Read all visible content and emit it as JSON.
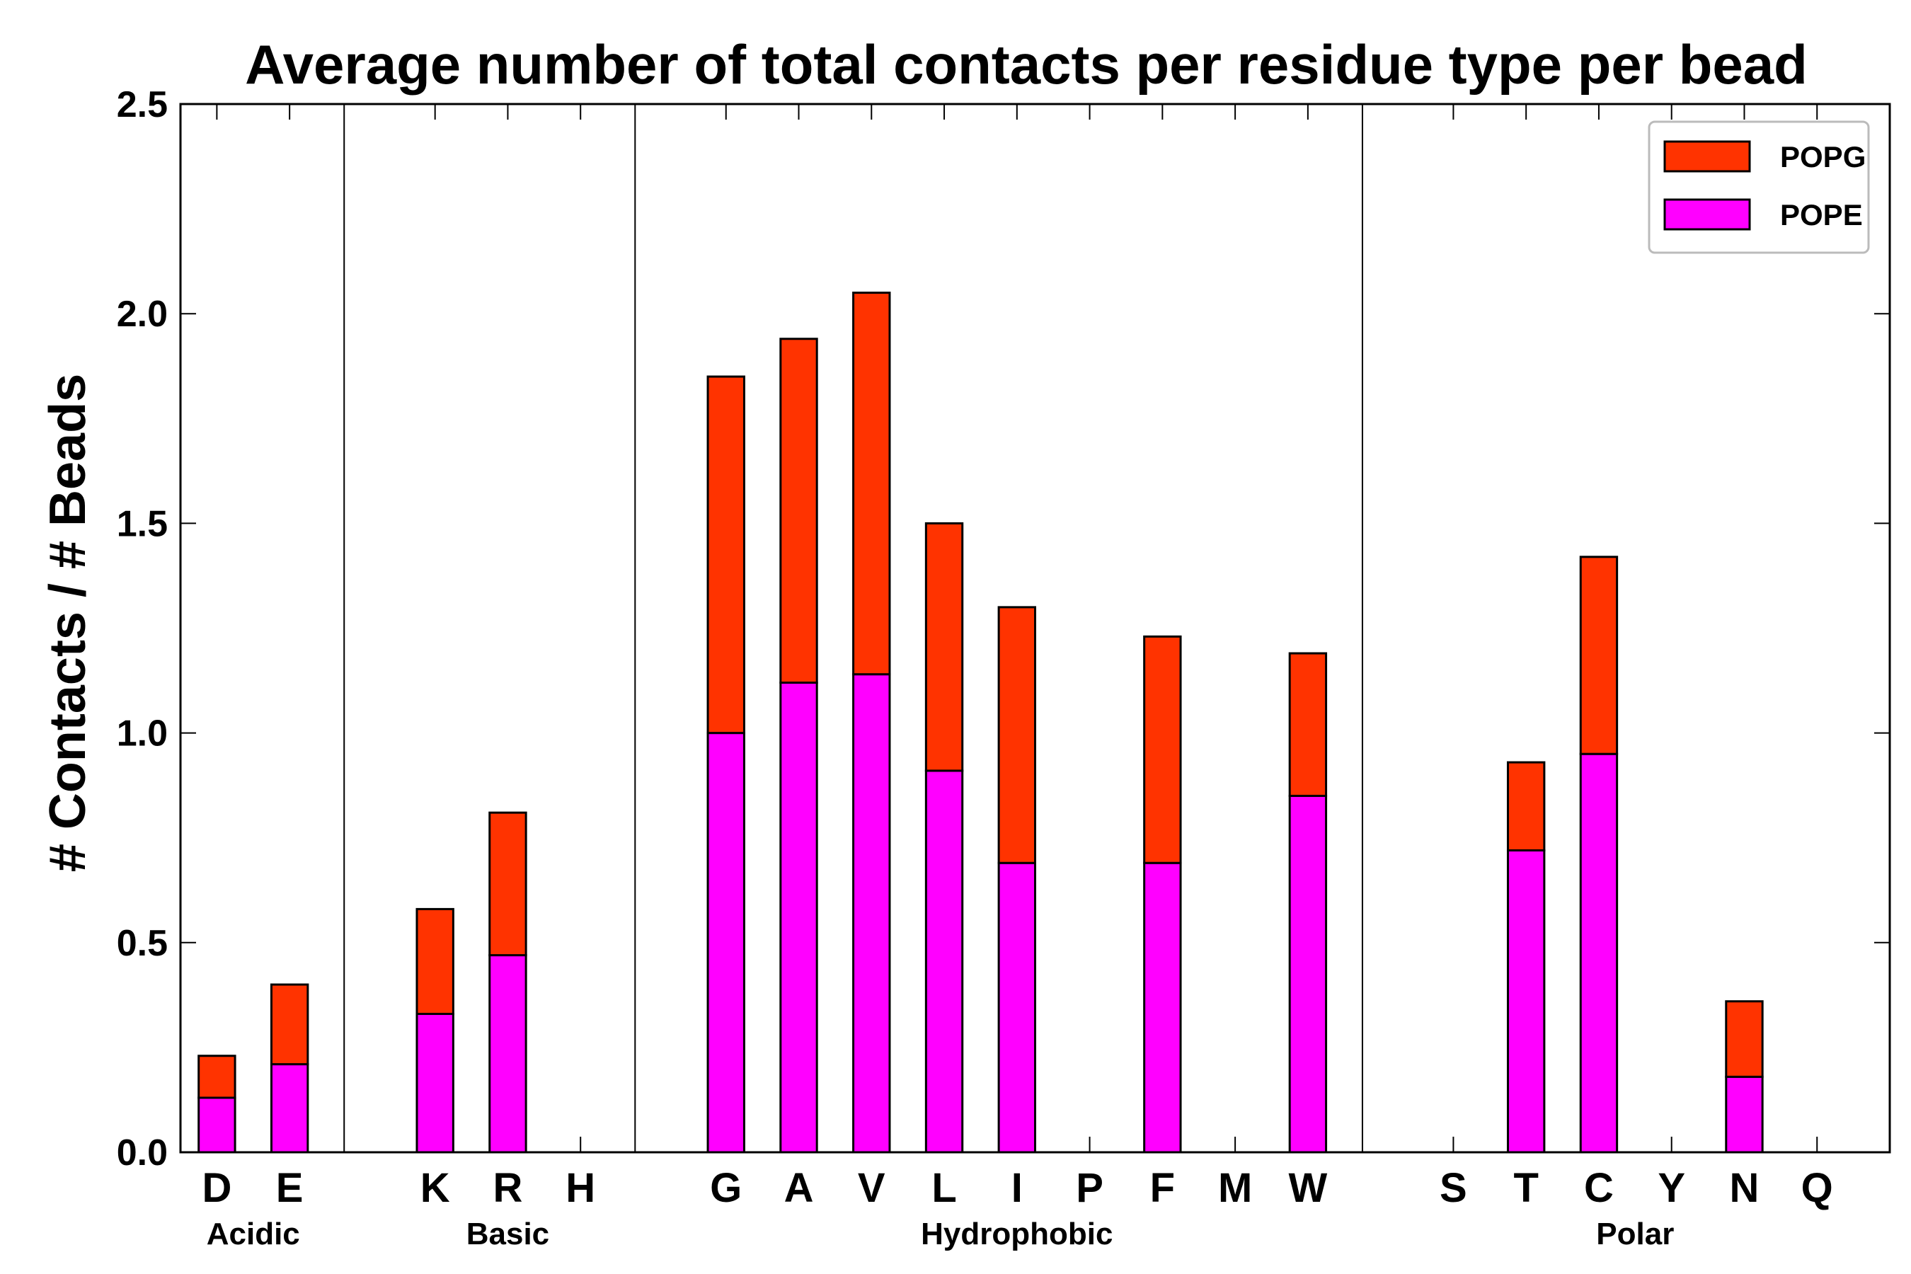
{
  "chart_data": {
    "type": "bar",
    "stacked": true,
    "title": "Average number of total contacts per residue type per bead",
    "xlabel": "",
    "ylabel": "# Contacts / # Beads",
    "ylim": [
      0,
      2.5
    ],
    "yticks": [
      "0.0",
      "0.5",
      "1.0",
      "1.5",
      "2.0",
      "2.5"
    ],
    "yticks_values": [
      0,
      0.5,
      1.0,
      1.5,
      2.0,
      2.5
    ],
    "categories": [
      "D",
      "E",
      "",
      "K",
      "R",
      "H",
      "",
      "G",
      "A",
      "V",
      "L",
      "I",
      "P",
      "F",
      "M",
      "W",
      "",
      "S",
      "T",
      "C",
      "Y",
      "N",
      "Q"
    ],
    "series": [
      {
        "name": "POPE",
        "color": "#ff00ff",
        "values": [
          0.13,
          0.21,
          0,
          0.33,
          0.47,
          0,
          0,
          1.0,
          1.12,
          1.14,
          0.91,
          0.69,
          0,
          0.69,
          0,
          0.85,
          0,
          0,
          0.72,
          0.95,
          0,
          0.18,
          0
        ]
      },
      {
        "name": "POPG",
        "color": "#ff3300",
        "values": [
          0.1,
          0.19,
          0,
          0.25,
          0.34,
          0,
          0,
          0.85,
          0.82,
          0.91,
          0.59,
          0.61,
          0,
          0.54,
          0,
          0.34,
          0,
          0,
          0.21,
          0.47,
          0,
          0.18,
          0
        ]
      }
    ],
    "groups": [
      {
        "label": "Acidic",
        "start": 0,
        "end": 1
      },
      {
        "label": "Basic",
        "start": 3,
        "end": 5
      },
      {
        "label": "Hydrophobic",
        "start": 7,
        "end": 15
      },
      {
        "label": "Polar",
        "start": 17,
        "end": 22
      }
    ],
    "separators_after": [
      2,
      6,
      16
    ],
    "legend": {
      "placement": "top-right",
      "entries": [
        "POPG",
        "POPE"
      ]
    }
  }
}
